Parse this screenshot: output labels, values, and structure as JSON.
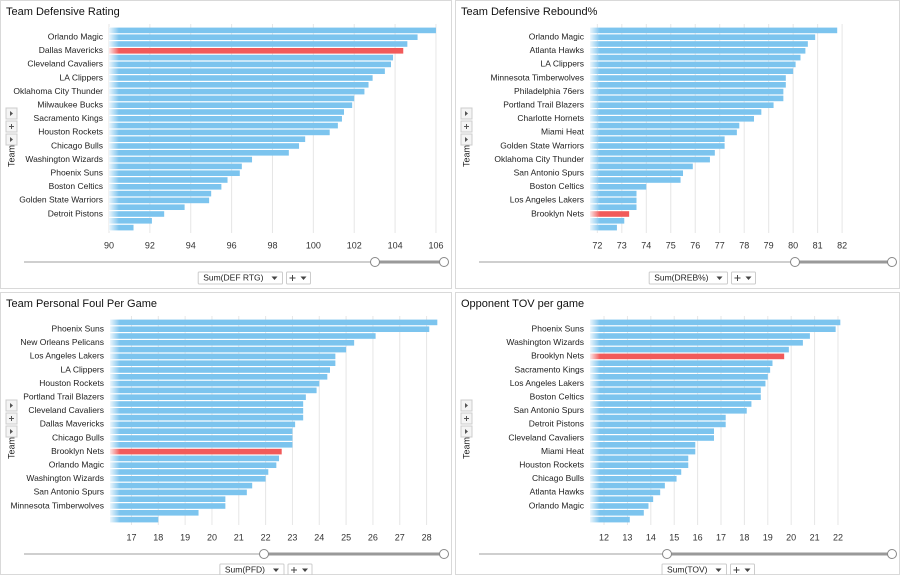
{
  "chart_data": [
    {
      "type": "bar",
      "orientation": "horizontal",
      "title": "Team Defensive Rating",
      "y_label": "Team",
      "measure": "Sum(DEF RTG)",
      "color": "#7cc4ee",
      "highlight_color": "#f15a5a",
      "highlight_index": 3,
      "grid": true,
      "xlim": [
        90,
        106.1
      ],
      "xticks": [
        90,
        92,
        94,
        96,
        98,
        100,
        102,
        104,
        106
      ],
      "categories": [
        null,
        "Orlando Magic",
        null,
        "Dallas Mavericks",
        null,
        "Cleveland Cavaliers",
        null,
        "LA Clippers",
        null,
        "Oklahoma City Thunder",
        null,
        "Milwaukee Bucks",
        null,
        "Sacramento Kings",
        null,
        "Houston Rockets",
        null,
        "Chicago Bulls",
        null,
        "Washington Wizards",
        null,
        "Phoenix Suns",
        null,
        "Boston Celtics",
        null,
        "Golden State Warriors",
        null,
        "Detroit Pistons",
        null,
        null
      ],
      "values": [
        106.0,
        105.1,
        104.6,
        104.4,
        103.9,
        103.8,
        103.5,
        102.9,
        102.7,
        102.5,
        102.0,
        101.9,
        101.5,
        101.4,
        101.2,
        100.8,
        99.6,
        99.3,
        98.8,
        97.0,
        96.5,
        96.4,
        95.8,
        95.5,
        95.0,
        94.9,
        93.7,
        92.7,
        92.1,
        91.2
      ]
    },
    {
      "type": "bar",
      "orientation": "horizontal",
      "title": "Team Defensive Rebound%",
      "y_label": "Team",
      "measure": "Sum(DREB%)",
      "color": "#7cc4ee",
      "highlight_color": "#f15a5a",
      "highlight_index": 27,
      "grid": true,
      "xlim": [
        71.7,
        82.2
      ],
      "xticks": [
        72,
        73,
        74,
        75,
        76,
        77,
        78,
        79,
        80,
        81,
        82
      ],
      "categories": [
        null,
        "Orlando Magic",
        null,
        "Atlanta Hawks",
        null,
        "LA Clippers",
        null,
        "Minnesota Timberwolves",
        null,
        "Philadelphia 76ers",
        null,
        "Portland Trail Blazers",
        null,
        "Charlotte Hornets",
        null,
        "Miami Heat",
        null,
        "Golden State Warriors",
        null,
        "Oklahoma City Thunder",
        null,
        "San Antonio Spurs",
        null,
        "Boston Celtics",
        null,
        "Los Angeles Lakers",
        null,
        "Brooklyn Nets",
        null,
        null
      ],
      "values": [
        81.8,
        80.9,
        80.6,
        80.5,
        80.3,
        80.1,
        80.0,
        79.7,
        79.7,
        79.6,
        79.6,
        79.2,
        78.7,
        78.4,
        77.8,
        77.7,
        77.2,
        77.2,
        76.8,
        76.6,
        75.9,
        75.5,
        75.4,
        74.0,
        73.6,
        73.6,
        73.6,
        73.3,
        73.1,
        72.8
      ]
    },
    {
      "type": "bar",
      "orientation": "horizontal",
      "title": "Team Personal Foul Per Game",
      "y_label": "Team",
      "measure": "Sum(PFD)",
      "color": "#7cc4ee",
      "highlight_color": "#f15a5a",
      "highlight_index": 19,
      "grid": true,
      "xlim": [
        16.2,
        28.5
      ],
      "xticks": [
        17,
        18,
        19,
        20,
        21,
        22,
        23,
        24,
        25,
        26,
        27,
        28
      ],
      "categories": [
        null,
        "Phoenix Suns",
        null,
        "New Orleans Pelicans",
        null,
        "Los Angeles Lakers",
        null,
        "LA Clippers",
        null,
        "Houston Rockets",
        null,
        "Portland Trail Blazers",
        null,
        "Cleveland Cavaliers",
        null,
        "Dallas Mavericks",
        null,
        "Chicago Bulls",
        null,
        "Brooklyn Nets",
        null,
        "Orlando Magic",
        null,
        "Washington Wizards",
        null,
        "San Antonio Spurs",
        null,
        "Minnesota Timberwolves",
        null,
        null
      ],
      "values": [
        28.4,
        28.1,
        26.1,
        25.3,
        25.0,
        24.6,
        24.6,
        24.4,
        24.3,
        24.0,
        23.9,
        23.5,
        23.4,
        23.4,
        23.4,
        23.1,
        23.0,
        23.0,
        23.0,
        22.6,
        22.5,
        22.4,
        22.1,
        22.0,
        21.5,
        21.3,
        20.5,
        20.5,
        19.5,
        18.0
      ]
    },
    {
      "type": "bar",
      "orientation": "horizontal",
      "title": "Opponent TOV per game",
      "y_label": "Team",
      "measure": "Sum(TOV)",
      "color": "#7cc4ee",
      "highlight_color": "#f15a5a",
      "highlight_index": 5,
      "grid": true,
      "xlim": [
        11.4,
        22.3
      ],
      "xticks": [
        12,
        13,
        14,
        15,
        16,
        17,
        18,
        19,
        20,
        21,
        22
      ],
      "categories": [
        null,
        "Phoenix Suns",
        null,
        "Washington Wizards",
        null,
        "Brooklyn Nets",
        null,
        "Sacramento Kings",
        null,
        "Los Angeles Lakers",
        null,
        "Boston Celtics",
        null,
        "San Antonio Spurs",
        null,
        "Detroit Pistons",
        null,
        "Cleveland Cavaliers",
        null,
        "Miami Heat",
        null,
        "Houston Rockets",
        null,
        "Chicago Bulls",
        null,
        "Atlanta Hawks",
        null,
        "Orlando Magic",
        null,
        null
      ],
      "values": [
        22.1,
        21.9,
        20.8,
        20.5,
        19.9,
        19.7,
        19.2,
        19.1,
        19.0,
        18.9,
        18.7,
        18.7,
        18.3,
        18.1,
        17.2,
        17.2,
        16.7,
        16.7,
        15.9,
        15.9,
        15.6,
        15.6,
        15.3,
        15.1,
        14.6,
        14.4,
        14.1,
        13.9,
        13.7,
        13.1
      ]
    }
  ]
}
